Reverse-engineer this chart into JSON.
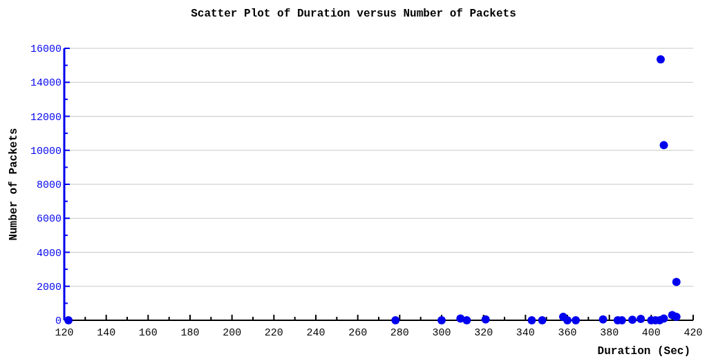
{
  "chart_data": {
    "type": "scatter",
    "title": "Scatter Plot of Duration versus Number of Packets",
    "xlabel": "Duration (Sec)",
    "ylabel": "Number of Packets",
    "x": [
      122,
      278,
      300,
      309,
      312,
      321,
      343,
      348,
      358,
      360,
      364,
      377,
      384,
      386,
      391,
      395,
      400,
      402,
      404,
      404.5,
      406,
      406,
      410,
      412,
      412
    ],
    "series": [
      {
        "color": "#0000ee",
        "values": [
          0,
          0,
          0,
          100,
          0,
          50,
          0,
          0,
          200,
          0,
          0,
          50,
          0,
          0,
          30,
          80,
          0,
          0,
          0,
          15350,
          10300,
          100,
          300,
          2250,
          200
        ]
      }
    ],
    "xlim": [
      120,
      420
    ],
    "xticks": [
      120,
      {
        "value": 130,
        "label": null
      },
      140,
      {
        "value": 150,
        "label": null
      },
      160,
      {
        "value": 170,
        "label": null
      },
      180,
      {
        "value": 190,
        "label": null
      },
      200,
      {
        "value": 210,
        "label": null
      },
      220,
      {
        "value": 230,
        "label": null
      },
      240,
      {
        "value": 250,
        "label": null
      },
      260,
      {
        "value": 270,
        "label": null
      },
      280,
      {
        "value": 290,
        "label": null
      },
      300,
      {
        "value": 310,
        "label": null
      },
      320,
      {
        "value": 330,
        "label": null
      },
      340,
      {
        "value": 350,
        "label": null
      },
      360,
      {
        "value": 370,
        "label": null
      },
      380,
      {
        "value": 390,
        "label": null
      },
      400,
      {
        "value": 410,
        "label": null
      },
      420
    ],
    "ylim": [
      0,
      16000
    ],
    "yticks": [
      0,
      {
        "value": 1000,
        "label": null
      },
      2000,
      {
        "value": 3000,
        "label": null
      },
      4000,
      {
        "value": 5000,
        "label": null
      },
      6000,
      {
        "value": 7000,
        "label": null
      },
      8000,
      {
        "value": 9000,
        "label": null
      },
      10000,
      {
        "value": 11000,
        "label": null
      },
      12000,
      {
        "value": 13000,
        "label": null
      },
      14000,
      {
        "value": 15000,
        "label": null
      },
      16000
    ],
    "grid": "y",
    "marker": "circle"
  }
}
